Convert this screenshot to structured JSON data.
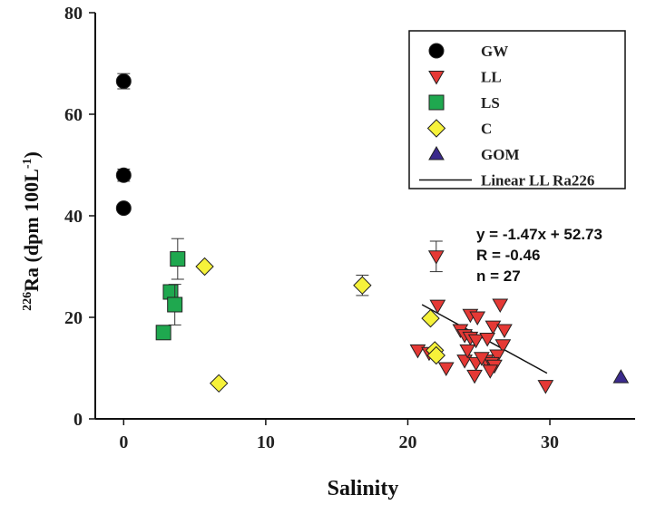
{
  "chart_data": {
    "type": "scatter",
    "xlabel": "Salinity",
    "ylabel_prefix": "226",
    "ylabel_main": "Ra (dpm 100L",
    "ylabel_exp": "-1",
    "ylabel_close": ")",
    "xlim": [
      -2,
      36
    ],
    "ylim": [
      0,
      80
    ],
    "x_ticks": [
      0,
      10,
      20,
      30
    ],
    "y_ticks": [
      0,
      20,
      40,
      60,
      80
    ],
    "legend_position": "top-right",
    "series": [
      {
        "name": "GW",
        "marker": "circle",
        "color": "#000000",
        "points": [
          {
            "x": 0.0,
            "y": 66.5,
            "err": 1.5
          },
          {
            "x": 0.0,
            "y": 48.0,
            "err": 1.2
          },
          {
            "x": 0.0,
            "y": 41.5,
            "err": 0
          }
        ]
      },
      {
        "name": "LL",
        "marker": "triangle-down",
        "color": "#e53935",
        "points": [
          {
            "x": 22.0,
            "y": 32.0,
            "err": 3.0
          },
          {
            "x": 22.1,
            "y": 22.3
          },
          {
            "x": 26.5,
            "y": 22.5
          },
          {
            "x": 24.4,
            "y": 20.5
          },
          {
            "x": 24.9,
            "y": 20.0
          },
          {
            "x": 26.0,
            "y": 18.2
          },
          {
            "x": 26.8,
            "y": 17.5
          },
          {
            "x": 23.7,
            "y": 17.5
          },
          {
            "x": 24.0,
            "y": 16.5
          },
          {
            "x": 24.4,
            "y": 16.0
          },
          {
            "x": 24.8,
            "y": 15.5
          },
          {
            "x": 25.6,
            "y": 15.8
          },
          {
            "x": 26.7,
            "y": 14.5
          },
          {
            "x": 20.7,
            "y": 13.5
          },
          {
            "x": 21.5,
            "y": 13.0
          },
          {
            "x": 26.3,
            "y": 12.5
          },
          {
            "x": 24.0,
            "y": 11.5
          },
          {
            "x": 24.8,
            "y": 11.0
          },
          {
            "x": 25.5,
            "y": 11.5
          },
          {
            "x": 25.9,
            "y": 11.0
          },
          {
            "x": 26.1,
            "y": 10.5
          },
          {
            "x": 22.7,
            "y": 10.0
          },
          {
            "x": 24.7,
            "y": 8.5
          },
          {
            "x": 25.8,
            "y": 9.5
          },
          {
            "x": 29.7,
            "y": 6.5
          },
          {
            "x": 25.2,
            "y": 12.0
          },
          {
            "x": 24.2,
            "y": 13.5
          }
        ]
      },
      {
        "name": "LS",
        "marker": "square",
        "color": "#1fa84f",
        "points": [
          {
            "x": 3.8,
            "y": 31.5,
            "err": 4.0
          },
          {
            "x": 3.3,
            "y": 25.0,
            "err": 0
          },
          {
            "x": 3.6,
            "y": 22.5,
            "err": 4.0
          },
          {
            "x": 2.8,
            "y": 17.0,
            "err": 0
          }
        ]
      },
      {
        "name": "C",
        "marker": "diamond",
        "color": "#f6f23a",
        "points": [
          {
            "x": 5.7,
            "y": 30.0,
            "err": 0
          },
          {
            "x": 16.8,
            "y": 26.3,
            "err": 2.0
          },
          {
            "x": 21.6,
            "y": 19.8,
            "err": 0
          },
          {
            "x": 21.9,
            "y": 13.5,
            "err": 0
          },
          {
            "x": 22.0,
            "y": 12.5,
            "err": 0
          },
          {
            "x": 6.7,
            "y": 7.0,
            "err": 0
          }
        ]
      },
      {
        "name": "GOM",
        "marker": "triangle-up",
        "color": "#3b2a8c",
        "points": [
          {
            "x": 35.0,
            "y": 8.2
          }
        ]
      }
    ],
    "fit_line": {
      "name": "Linear LL Ra226",
      "x": [
        21.0,
        29.8
      ],
      "y": [
        22.5,
        9.0
      ]
    },
    "annotation": {
      "line1": "y = -1.47x + 52.73",
      "line2": "R = -0.46",
      "line3": "n = 27"
    }
  }
}
